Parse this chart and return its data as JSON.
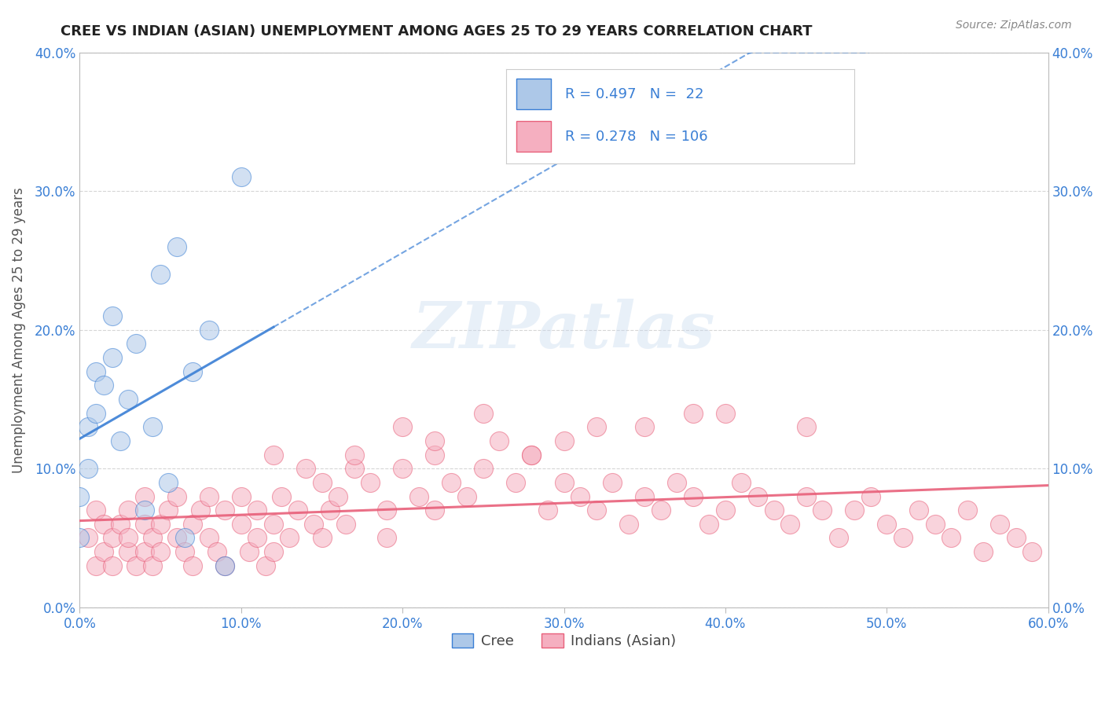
{
  "title": "CREE VS INDIAN (ASIAN) UNEMPLOYMENT AMONG AGES 25 TO 29 YEARS CORRELATION CHART",
  "source": "Source: ZipAtlas.com",
  "ylabel_label": "Unemployment Among Ages 25 to 29 years",
  "legend_labels": [
    "Cree",
    "Indians (Asian)"
  ],
  "R_cree": 0.497,
  "N_cree": 22,
  "R_indian": 0.278,
  "N_indian": 106,
  "cree_color": "#adc8e8",
  "indian_color": "#f5afc0",
  "cree_line_color": "#3a7fd5",
  "indian_line_color": "#e8607a",
  "background_color": "#ffffff",
  "grid_color": "#cccccc",
  "title_color": "#222222",
  "cree_scatter_x": [
    0.0,
    0.0,
    0.005,
    0.005,
    0.01,
    0.01,
    0.015,
    0.02,
    0.02,
    0.025,
    0.03,
    0.035,
    0.04,
    0.045,
    0.05,
    0.055,
    0.06,
    0.065,
    0.07,
    0.08,
    0.09,
    0.1
  ],
  "cree_scatter_y": [
    0.05,
    0.08,
    0.1,
    0.13,
    0.14,
    0.17,
    0.16,
    0.18,
    0.21,
    0.12,
    0.15,
    0.19,
    0.07,
    0.13,
    0.24,
    0.09,
    0.26,
    0.05,
    0.17,
    0.2,
    0.03,
    0.31
  ],
  "indian_scatter_x": [
    0.005,
    0.01,
    0.01,
    0.015,
    0.015,
    0.02,
    0.02,
    0.025,
    0.03,
    0.03,
    0.03,
    0.035,
    0.04,
    0.04,
    0.04,
    0.045,
    0.045,
    0.05,
    0.05,
    0.055,
    0.06,
    0.06,
    0.065,
    0.07,
    0.07,
    0.075,
    0.08,
    0.08,
    0.085,
    0.09,
    0.09,
    0.1,
    0.1,
    0.105,
    0.11,
    0.11,
    0.115,
    0.12,
    0.12,
    0.125,
    0.13,
    0.135,
    0.14,
    0.145,
    0.15,
    0.15,
    0.155,
    0.16,
    0.165,
    0.17,
    0.18,
    0.19,
    0.19,
    0.2,
    0.21,
    0.22,
    0.22,
    0.23,
    0.24,
    0.25,
    0.26,
    0.27,
    0.28,
    0.29,
    0.3,
    0.31,
    0.32,
    0.33,
    0.34,
    0.35,
    0.36,
    0.37,
    0.38,
    0.39,
    0.4,
    0.41,
    0.42,
    0.43,
    0.44,
    0.45,
    0.46,
    0.47,
    0.48,
    0.49,
    0.5,
    0.51,
    0.52,
    0.53,
    0.54,
    0.55,
    0.56,
    0.57,
    0.58,
    0.59,
    0.2,
    0.25,
    0.3,
    0.35,
    0.4,
    0.45,
    0.32,
    0.38,
    0.28,
    0.22,
    0.17,
    0.12
  ],
  "indian_scatter_y": [
    0.05,
    0.03,
    0.07,
    0.04,
    0.06,
    0.03,
    0.05,
    0.06,
    0.04,
    0.07,
    0.05,
    0.03,
    0.06,
    0.04,
    0.08,
    0.05,
    0.03,
    0.06,
    0.04,
    0.07,
    0.05,
    0.08,
    0.04,
    0.06,
    0.03,
    0.07,
    0.05,
    0.08,
    0.04,
    0.07,
    0.03,
    0.06,
    0.08,
    0.04,
    0.07,
    0.05,
    0.03,
    0.06,
    0.04,
    0.08,
    0.05,
    0.07,
    0.1,
    0.06,
    0.09,
    0.05,
    0.07,
    0.08,
    0.06,
    0.1,
    0.09,
    0.07,
    0.05,
    0.1,
    0.08,
    0.11,
    0.07,
    0.09,
    0.08,
    0.1,
    0.12,
    0.09,
    0.11,
    0.07,
    0.09,
    0.08,
    0.07,
    0.09,
    0.06,
    0.08,
    0.07,
    0.09,
    0.08,
    0.06,
    0.07,
    0.09,
    0.08,
    0.07,
    0.06,
    0.08,
    0.07,
    0.05,
    0.07,
    0.08,
    0.06,
    0.05,
    0.07,
    0.06,
    0.05,
    0.07,
    0.04,
    0.06,
    0.05,
    0.04,
    0.13,
    0.14,
    0.12,
    0.13,
    0.14,
    0.13,
    0.13,
    0.14,
    0.11,
    0.12,
    0.11,
    0.11
  ],
  "xlim": [
    0.0,
    0.6
  ],
  "ylim": [
    0.0,
    0.4
  ],
  "xtick_vals": [
    0.0,
    0.1,
    0.2,
    0.3,
    0.4,
    0.5,
    0.6
  ],
  "ytick_vals": [
    0.0,
    0.1,
    0.2,
    0.3,
    0.4
  ]
}
